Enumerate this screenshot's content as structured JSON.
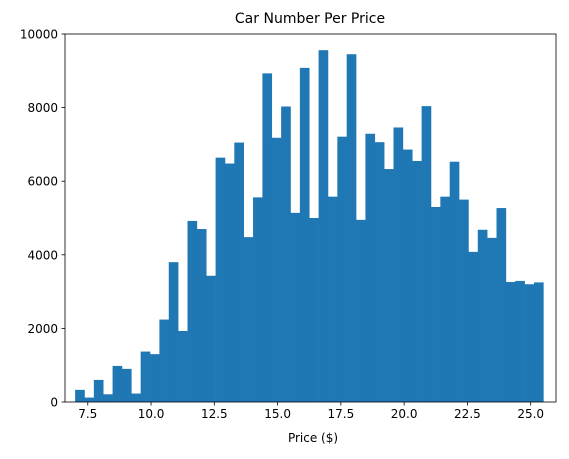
{
  "chart_data": {
    "type": "bar",
    "title": "Car Number Per Price",
    "xlabel": "Price ($)",
    "ylabel": "",
    "xlim": [
      6.6,
      26.0
    ],
    "ylim": [
      0,
      10000
    ],
    "x_ticks": [
      7.5,
      10.0,
      12.5,
      15.0,
      17.5,
      20.0,
      22.5,
      25.0
    ],
    "x_tick_labels": [
      "7.5",
      "10.0",
      "12.5",
      "15.0",
      "17.5",
      "20.0",
      "22.5",
      "25.0"
    ],
    "y_ticks": [
      0,
      2000,
      4000,
      6000,
      8000,
      10000
    ],
    "y_tick_labels": [
      "0",
      "2000",
      "4000",
      "6000",
      "8000",
      "10000"
    ],
    "grid": false,
    "legend": "none",
    "bar_color": "#1f77b4",
    "bin_start": 7.0,
    "bin_width": 0.37,
    "values": [
      330,
      120,
      600,
      210,
      980,
      900,
      230,
      1370,
      1300,
      2240,
      3800,
      1930,
      4920,
      4700,
      3430,
      6640,
      6480,
      7050,
      4480,
      5560,
      8930,
      7180,
      8030,
      5140,
      9080,
      5000,
      9560,
      5580,
      7210,
      9450,
      4950,
      7290,
      7060,
      6330,
      7460,
      6860,
      6550,
      8040,
      5300,
      5580,
      6530,
      5500,
      4080,
      4680,
      4460,
      5270,
      3260,
      3290,
      3200,
      3250
    ]
  }
}
